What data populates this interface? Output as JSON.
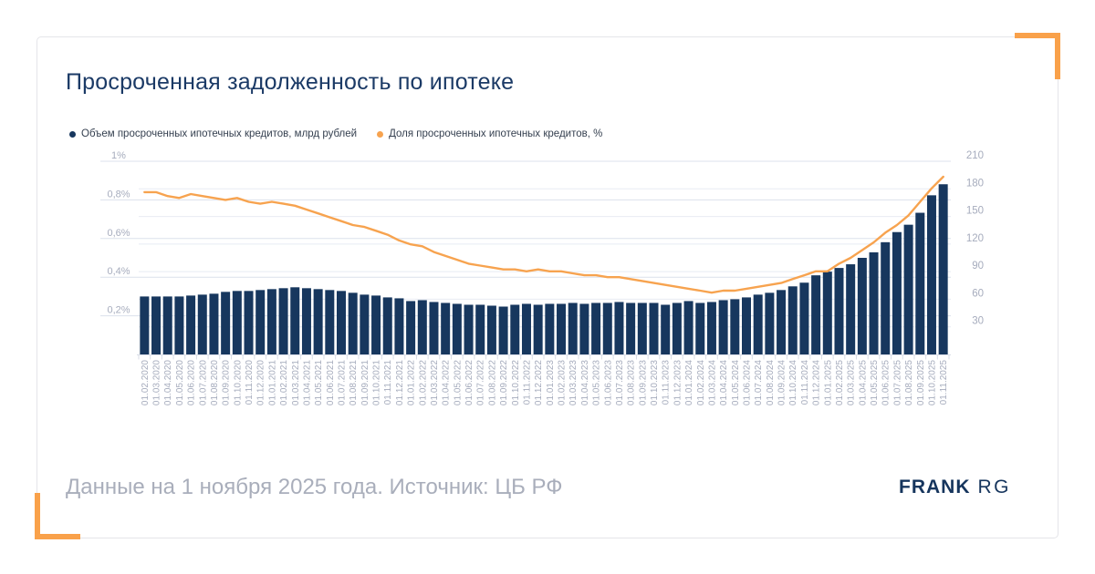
{
  "title": "Просроченная задолженность по ипотеке",
  "legend": [
    {
      "label": "Объем просроченных ипотечных кредитов, млрд рублей",
      "color": "#17375e"
    },
    {
      "label": "Доля просроченных ипотечных кредитов, %",
      "color": "#f7a34f"
    }
  ],
  "footer": {
    "note": "Данные на 1 ноября 2025 года. Источник: ЦБ РФ",
    "logo_primary": "FRANK",
    "logo_secondary": "RG"
  },
  "colors": {
    "bar": "#17375e",
    "line": "#f7a34f",
    "accent": "#f9a14a",
    "title": "#1b3a66",
    "axis_text": "#a6acbd",
    "grid_left": "#dce1ec",
    "grid_right": "#e8ebf3",
    "axis_line": "#d9dde7",
    "footer_text": "#a9aebb",
    "logo": "#16355d"
  },
  "chart_data": {
    "type": "bar",
    "subtype": "bar+line dual axis",
    "grid": true,
    "legend_position": "top-left",
    "categories": [
      "01.02.2020",
      "01.03.2020",
      "01.04.2020",
      "01.05.2020",
      "01.06.2020",
      "01.07.2020",
      "01.08.2020",
      "01.09.2020",
      "01.10.2020",
      "01.11.2020",
      "01.12.2020",
      "01.01.2021",
      "01.02.2021",
      "01.03.2021",
      "01.04.2021",
      "01.05.2021",
      "01.06.2021",
      "01.07.2021",
      "01.08.2021",
      "01.09.2021",
      "01.10.2021",
      "01.11.2021",
      "01.12.2021",
      "01.01.2022",
      "01.02.2022",
      "01.03.2022",
      "01.04.2022",
      "01.05.2022",
      "01.06.2022",
      "01.07.2022",
      "01.08.2022",
      "01.09.2022",
      "01.10.2022",
      "01.11.2022",
      "01.12.2022",
      "01.01.2023",
      "01.02.2023",
      "01.03.2023",
      "01.04.2023",
      "01.05.2023",
      "01.06.2023",
      "01.07.2023",
      "01.08.2023",
      "01.09.2023",
      "01.10.2023",
      "01.11.2023",
      "01.12.2023",
      "01.01.2024",
      "01.02.2024",
      "01.03.2024",
      "01.04.2024",
      "01.05.2024",
      "01.06.2024",
      "01.07.2024",
      "01.08.2024",
      "01.09.2024",
      "01.10.2024",
      "01.11.2024",
      "01.12.2024",
      "01.01.2025",
      "01.02.2025",
      "01.03.2025",
      "01.04.2025",
      "01.05.2025",
      "01.06.2025",
      "01.07.2025",
      "01.08.2025",
      "01.09.2025",
      "01.10.2025",
      "01.11.2025"
    ],
    "series": [
      {
        "name": "Объем просроченных ипотечных кредитов, млрд рублей",
        "type": "bar",
        "axis": "right",
        "values": [
          63,
          63,
          63,
          63,
          64,
          65,
          66,
          68,
          69,
          69,
          70,
          71,
          72,
          73,
          72,
          71,
          70,
          69,
          67,
          65,
          64,
          62,
          61,
          58,
          59,
          57,
          56,
          55,
          54,
          54,
          53,
          52,
          54,
          55,
          54,
          55,
          55,
          56,
          55,
          56,
          56,
          57,
          56,
          56,
          56,
          54,
          56,
          58,
          56,
          57,
          59,
          60,
          62,
          65,
          67,
          70,
          74,
          78,
          86,
          90,
          94,
          98,
          105,
          111,
          122,
          133,
          141,
          154,
          173,
          185
        ]
      },
      {
        "name": "Доля просроченных ипотечных кредитов, %",
        "type": "line",
        "axis": "left",
        "values": [
          0.84,
          0.84,
          0.82,
          0.81,
          0.83,
          0.82,
          0.81,
          0.8,
          0.81,
          0.79,
          0.78,
          0.79,
          0.78,
          0.77,
          0.75,
          0.73,
          0.71,
          0.69,
          0.67,
          0.66,
          0.64,
          0.62,
          0.59,
          0.57,
          0.56,
          0.53,
          0.51,
          0.49,
          0.47,
          0.46,
          0.45,
          0.44,
          0.44,
          0.43,
          0.44,
          0.43,
          0.43,
          0.42,
          0.41,
          0.41,
          0.4,
          0.4,
          0.39,
          0.38,
          0.37,
          0.36,
          0.35,
          0.34,
          0.33,
          0.32,
          0.33,
          0.33,
          0.34,
          0.35,
          0.36,
          0.37,
          0.39,
          0.41,
          0.43,
          0.43,
          0.47,
          0.5,
          0.54,
          0.58,
          0.63,
          0.67,
          0.72,
          0.79,
          0.86,
          0.92
        ]
      }
    ],
    "left_axis": {
      "unit": "%",
      "min": 0,
      "max": 1.0,
      "tick_labels": [
        "1%",
        "0,8%",
        "0,6%",
        "0,4%",
        "0,2%"
      ],
      "tick_values": [
        1.0,
        0.8,
        0.6,
        0.4,
        0.2
      ]
    },
    "right_axis": {
      "unit": "млрд рублей",
      "min": 0,
      "max": 210,
      "tick_labels": [
        "210",
        "180",
        "150",
        "120",
        "90",
        "60",
        "30"
      ],
      "tick_values": [
        210,
        180,
        150,
        120,
        90,
        60,
        30
      ]
    }
  }
}
